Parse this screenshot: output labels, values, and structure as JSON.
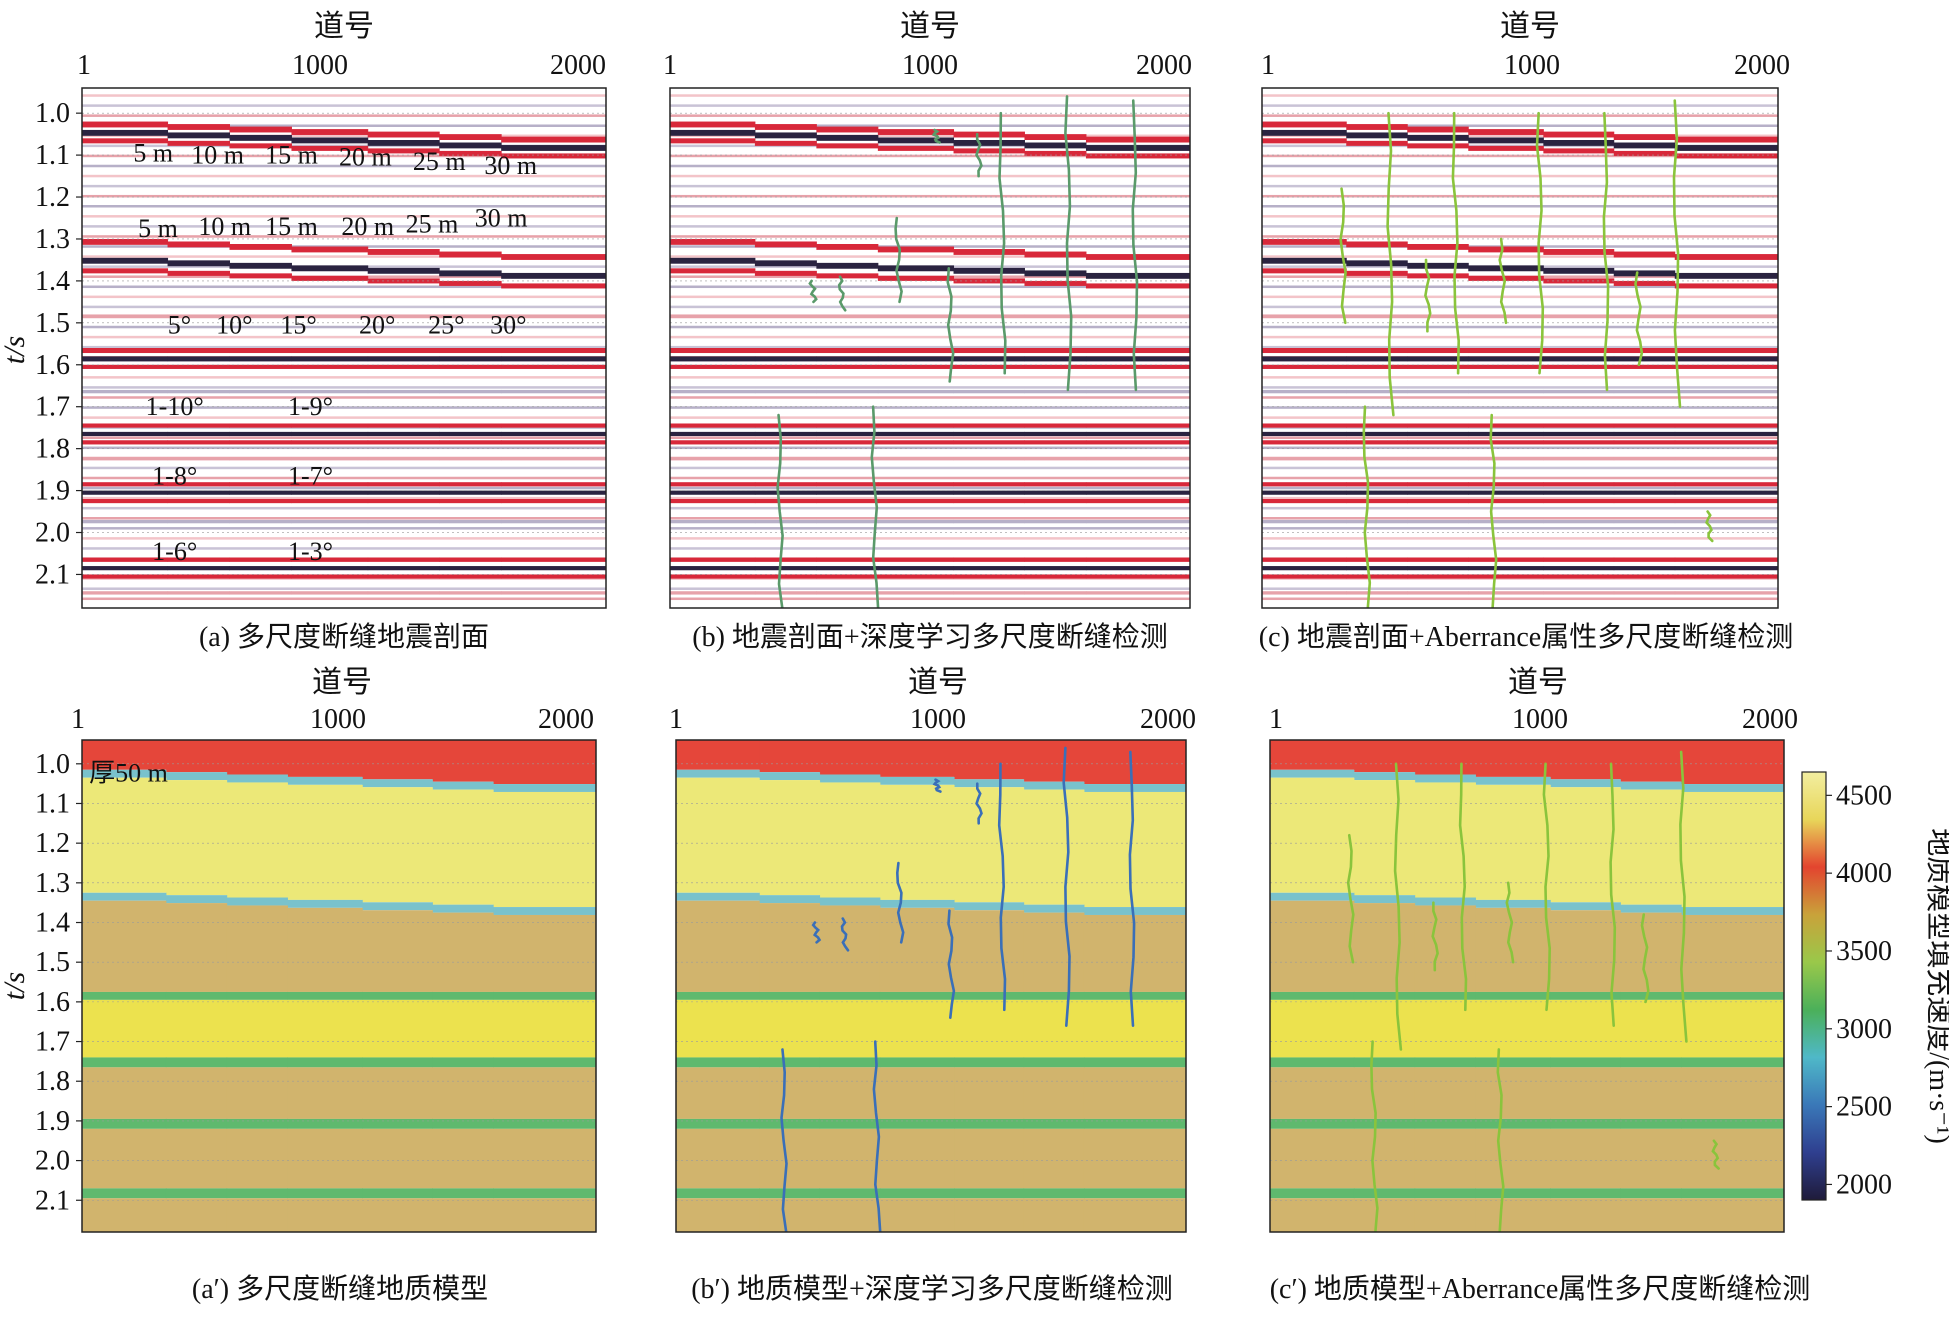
{
  "xaxis": {
    "title": "道号",
    "ticks": [
      1,
      1000,
      2000
    ],
    "range": [
      1,
      2200
    ]
  },
  "yaxis": {
    "title": "t/s",
    "ticks": [
      "1.0",
      "1.1",
      "1.2",
      "1.3",
      "1.4",
      "1.5",
      "1.6",
      "1.7",
      "1.8",
      "1.9",
      "2.0",
      "2.1"
    ],
    "range": [
      0.94,
      2.18
    ]
  },
  "panels": [
    {
      "id": "a",
      "kind": "seismic",
      "faults": "none",
      "caption": "(a) 多尺度断缝地震剖面"
    },
    {
      "id": "b",
      "kind": "seismic",
      "faults": "dl",
      "caption": "(b) 地震剖面+深度学习多尺度断缝检测"
    },
    {
      "id": "c",
      "kind": "seismic",
      "faults": "ab",
      "caption": "(c) 地震剖面+Aberrance属性多尺度断缝检测"
    },
    {
      "id": "a2",
      "kind": "model",
      "faults": "none",
      "caption": "(a′) 多尺度断缝地质模型"
    },
    {
      "id": "b2",
      "kind": "model",
      "faults": "dl",
      "caption": "(b′) 地质模型+深度学习多尺度断缝检测"
    },
    {
      "id": "c2",
      "kind": "model",
      "faults": "ab",
      "caption": "(c′) 地质模型+Aberrance属性多尺度断缝检测"
    }
  ],
  "annotations": {
    "throw_row1": [
      {
        "text": "5 m",
        "trace": 300,
        "t": 1.115
      },
      {
        "text": "10 m",
        "trace": 570,
        "t": 1.12
      },
      {
        "text": "15 m",
        "trace": 880,
        "t": 1.12
      },
      {
        "text": "20 m",
        "trace": 1190,
        "t": 1.125
      },
      {
        "text": "25 m",
        "trace": 1500,
        "t": 1.135
      },
      {
        "text": "30 m",
        "trace": 1800,
        "t": 1.145
      }
    ],
    "throw_row2": [
      {
        "text": "5 m",
        "trace": 320,
        "t": 1.295
      },
      {
        "text": "10 m",
        "trace": 600,
        "t": 1.29
      },
      {
        "text": "15 m",
        "trace": 880,
        "t": 1.29
      },
      {
        "text": "20 m",
        "trace": 1200,
        "t": 1.29
      },
      {
        "text": "25 m",
        "trace": 1470,
        "t": 1.285
      },
      {
        "text": "30 m",
        "trace": 1760,
        "t": 1.27
      }
    ],
    "dip_row": [
      {
        "text": "5°",
        "trace": 410,
        "t": 1.525
      },
      {
        "text": "10°",
        "trace": 640,
        "t": 1.525
      },
      {
        "text": "15°",
        "trace": 910,
        "t": 1.525
      },
      {
        "text": "20°",
        "trace": 1240,
        "t": 1.525
      },
      {
        "text": "25°",
        "trace": 1530,
        "t": 1.525
      },
      {
        "text": "30°",
        "trace": 1790,
        "t": 1.525
      }
    ],
    "step_row": [
      {
        "text": "1-10°",
        "trace": 390,
        "t": 1.72
      },
      {
        "text": "1-9°",
        "trace": 960,
        "t": 1.72
      },
      {
        "text": "1-8°",
        "trace": 390,
        "t": 1.885
      },
      {
        "text": "1-7°",
        "trace": 960,
        "t": 1.885
      },
      {
        "text": "1-6°",
        "trace": 390,
        "t": 2.065
      },
      {
        "text": "1-3°",
        "trace": 960,
        "t": 2.065
      }
    ],
    "thickness": {
      "text": "厚50 m",
      "trace": 200,
      "t": 1.045
    }
  },
  "colorbar": {
    "label": "地质模型填充速度/(m·s⁻¹)",
    "ticks": [
      2000,
      2500,
      3000,
      3500,
      4000,
      4500
    ],
    "range": [
      1900,
      4650
    ],
    "colors": [
      "#1f1b3a",
      "#2f3f8f",
      "#3a78b8",
      "#4fb8c8",
      "#4bb05a",
      "#9ac84a",
      "#c9a23a",
      "#e3442f",
      "#e8d65a",
      "#f2eea0"
    ]
  },
  "colors": {
    "seis_red": "#d8283a",
    "seis_dark": "#2a2340",
    "layer_top": "#e5463a",
    "layer_light_yellow": "#ece878",
    "layer_tan": "#d1b46d",
    "layer_yellow": "#ece24e",
    "layer_cyan": "#79c2cc",
    "layer_green": "#5fb96e",
    "fault_dl": "#3a6fb8",
    "fault_ab": "#8ac43c"
  }
}
